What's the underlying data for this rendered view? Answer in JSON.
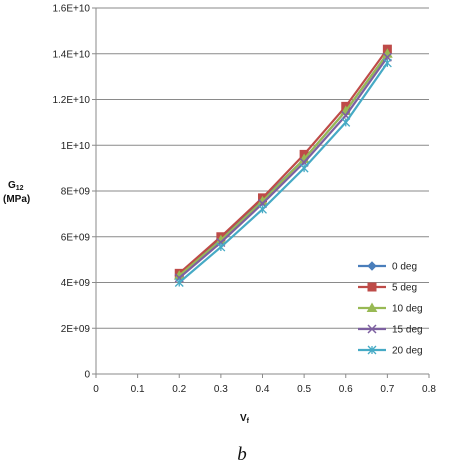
{
  "chart_data": {
    "type": "line",
    "title": "",
    "xlabel": "V",
    "xlabel_sub": "f",
    "ylabel": "G",
    "ylabel_sub": "12",
    "ylabel_unit": "(MPa)",
    "xlim": [
      0,
      0.8
    ],
    "ylim": [
      0,
      16000000000
    ],
    "x_ticks": [
      "0",
      "0.1",
      "0.2",
      "0.3",
      "0.4",
      "0.5",
      "0.6",
      "0.7",
      "0.8"
    ],
    "y_ticks": [
      "0",
      "2E+09",
      "4E+09",
      "6E+09",
      "8E+09",
      "1E+10",
      "1.2E+10",
      "1.4E+10",
      "1.6E+10"
    ],
    "grid": "horizontal",
    "legend_position": "right",
    "caption": "b",
    "x": [
      0.2,
      0.3,
      0.4,
      0.5,
      0.6,
      0.7
    ],
    "series": [
      {
        "name": "0 deg",
        "color": "#4a7ebb",
        "marker": "diamond",
        "values": [
          4300000000,
          5900000000,
          7600000000,
          9400000000,
          11500000000,
          14000000000
        ]
      },
      {
        "name": "5 deg",
        "color": "#be4b48",
        "marker": "square",
        "values": [
          4400000000,
          6000000000,
          7700000000,
          9600000000,
          11700000000,
          14200000000
        ]
      },
      {
        "name": "10 deg",
        "color": "#98b954",
        "marker": "triangle",
        "values": [
          4300000000,
          5850000000,
          7550000000,
          9400000000,
          11500000000,
          14000000000
        ]
      },
      {
        "name": "15 deg",
        "color": "#7d60a0",
        "marker": "x",
        "values": [
          4200000000,
          5750000000,
          7450000000,
          9250000000,
          11300000000,
          13850000000
        ]
      },
      {
        "name": "20 deg",
        "color": "#46aac5",
        "marker": "star",
        "values": [
          4000000000,
          5550000000,
          7200000000,
          9000000000,
          11000000000,
          13600000000
        ]
      }
    ]
  }
}
